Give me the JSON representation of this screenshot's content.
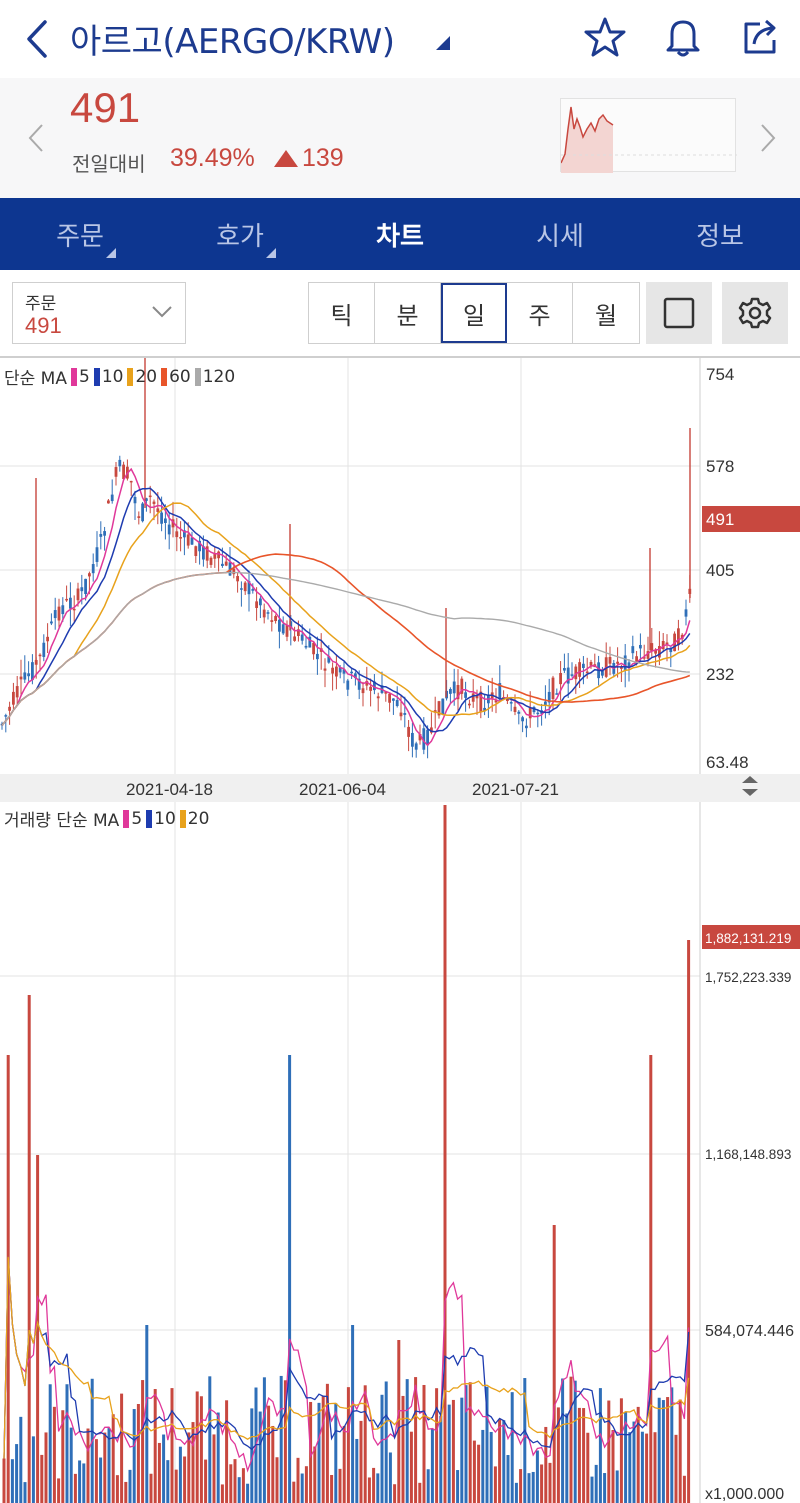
{
  "header": {
    "title": "아르고(AERGO/KRW)"
  },
  "summary": {
    "price": "491",
    "change_label": "전일대비",
    "change_pct": "39.49%",
    "change_amount": "139"
  },
  "tabs": [
    {
      "label": "주문",
      "active": false,
      "menu": true
    },
    {
      "label": "호가",
      "active": false,
      "menu": true
    },
    {
      "label": "차트",
      "active": true,
      "menu": false
    },
    {
      "label": "시세",
      "active": false,
      "menu": false
    },
    {
      "label": "정보",
      "active": false,
      "menu": false
    }
  ],
  "toolbar": {
    "order_label": "주문",
    "order_value": "491",
    "periods": [
      "틱",
      "분",
      "일",
      "주",
      "월"
    ],
    "active_period": "일"
  },
  "price_chart": {
    "legend_prefix": "단순 MA",
    "ma": [
      {
        "label": "5",
        "color": "#e0389a"
      },
      {
        "label": "10",
        "color": "#1e3cb0"
      },
      {
        "label": "20",
        "color": "#e8a21c"
      },
      {
        "label": "60",
        "color": "#e8552a"
      },
      {
        "label": "120",
        "color": "#aaaaaa"
      }
    ],
    "y_labels": [
      "754",
      "578",
      "405",
      "232",
      "63.48"
    ],
    "current_price_tag": "491",
    "x_labels": [
      "2021-04-18",
      "2021-06-04",
      "2021-07-21"
    ]
  },
  "volume_chart": {
    "legend_prefix": "거래량 단순 MA",
    "ma": [
      {
        "label": "5",
        "color": "#e0389a"
      },
      {
        "label": "10",
        "color": "#1e3cb0"
      },
      {
        "label": "20",
        "color": "#e8a21c"
      }
    ],
    "y_labels": [
      "1,752,223.339",
      "1,168,148.893",
      "584,074.446",
      "x1,000.000"
    ],
    "current_volume_tag": "1,882,131.219"
  },
  "colors": {
    "brand": "#0d3690",
    "up": "#c8483f",
    "down": "#2f6fb8",
    "title": "#1d3b8f"
  }
}
